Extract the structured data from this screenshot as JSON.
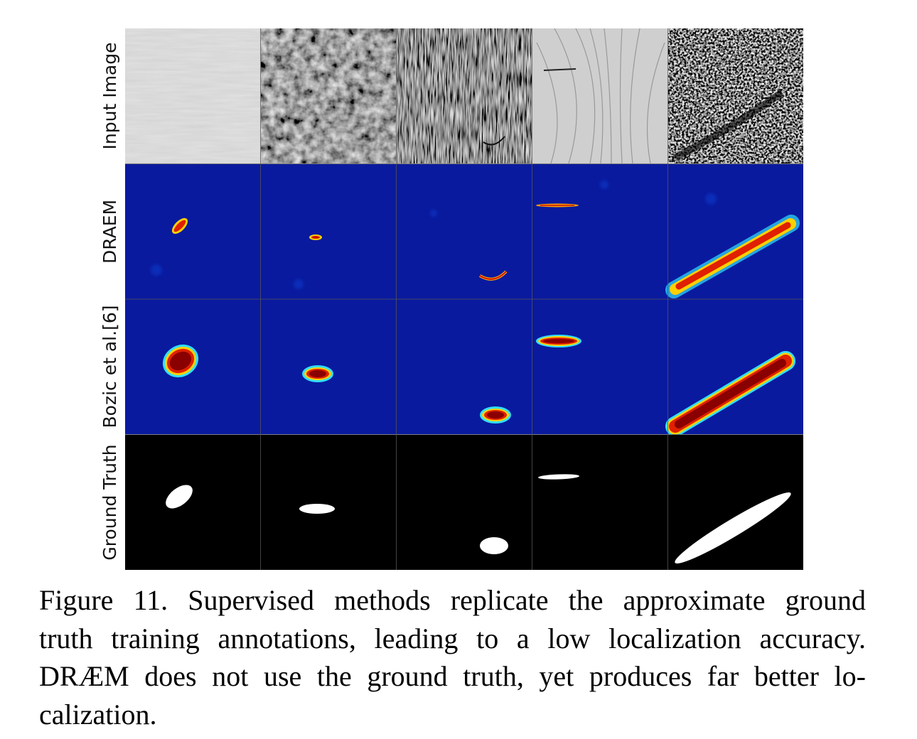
{
  "figure": {
    "row_labels": [
      "Input Image",
      "DRAEM",
      "Bozic et al.[6]",
      "Ground Truth"
    ]
  },
  "caption": {
    "lines": [
      "Figure 11. Supervised methods replicate the approximate ground",
      "truth training annotations, leading to a low localization accuracy.",
      "DRÆM does not use the ground truth, yet produces far better lo-",
      "calization."
    ]
  }
}
